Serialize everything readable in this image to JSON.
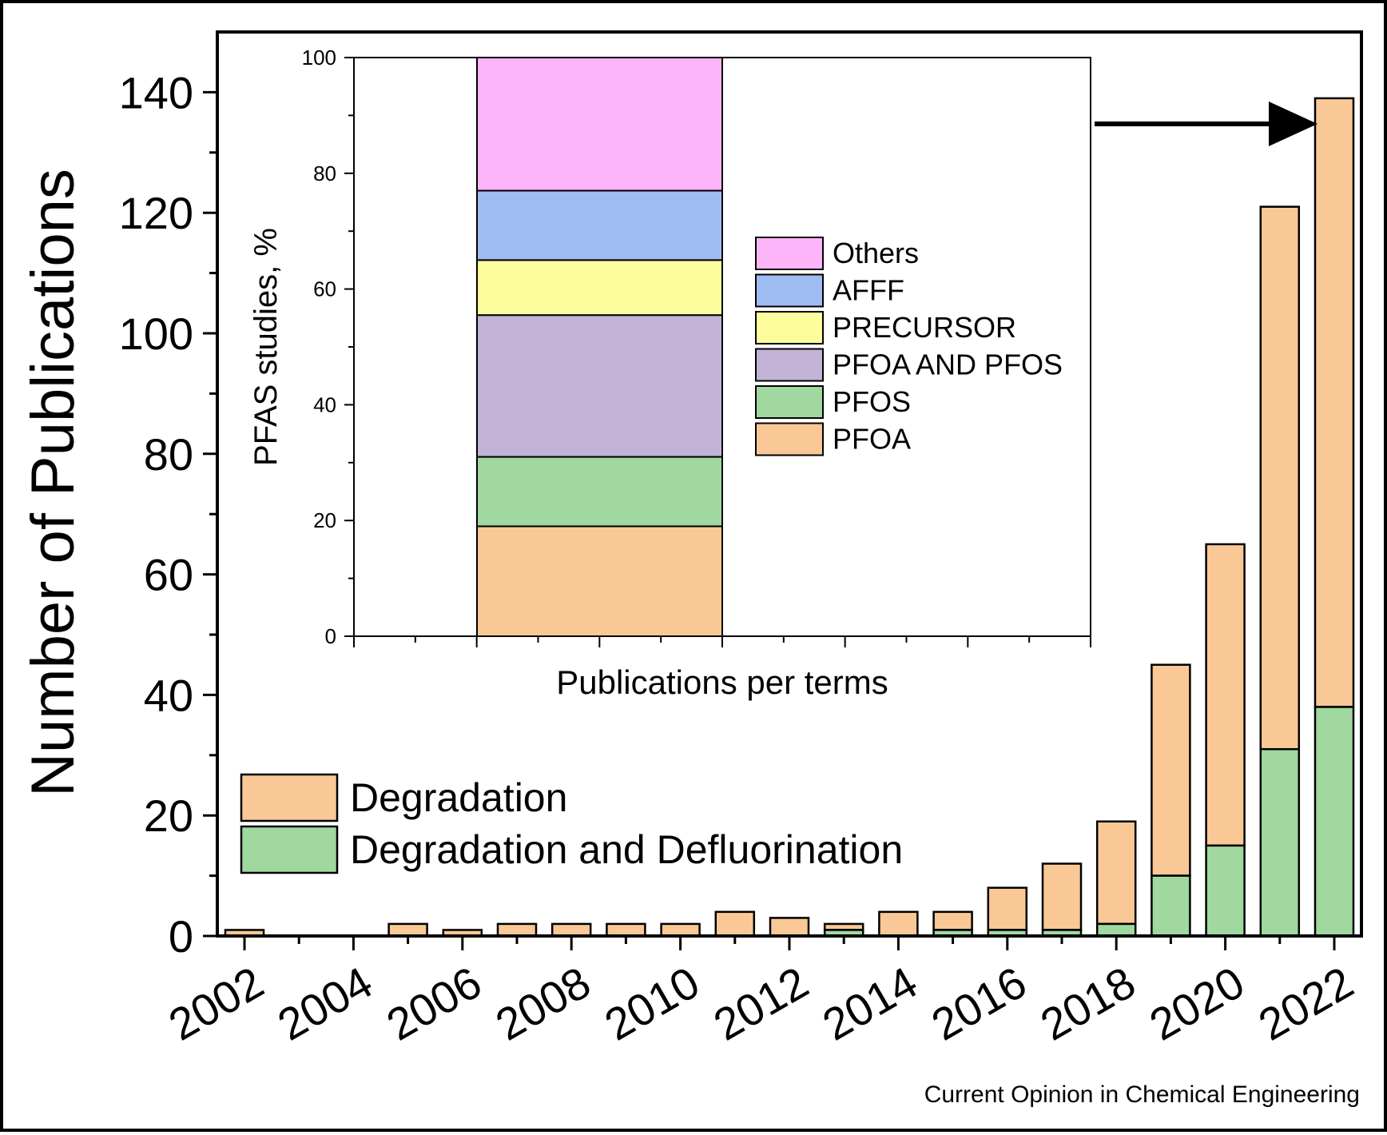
{
  "chart_data": [
    {
      "type": "bar",
      "stacked": true,
      "ylabel": "Number of Publications",
      "xlabel": "",
      "ylim": [
        0,
        150
      ],
      "y_ticks": [
        "0",
        "20",
        "40",
        "60",
        "80",
        "100",
        "120",
        "140"
      ],
      "x_tick_labels": [
        "2002",
        "2004",
        "2006",
        "2008",
        "2010",
        "2012",
        "2014",
        "2016",
        "2018",
        "2020",
        "2022"
      ],
      "categories": [
        2002,
        2003,
        2004,
        2005,
        2006,
        2007,
        2008,
        2009,
        2010,
        2011,
        2012,
        2013,
        2014,
        2015,
        2016,
        2017,
        2018,
        2019,
        2020,
        2021,
        2022
      ],
      "series": [
        {
          "name": "Degradation and Defluorination",
          "color": "#a0d8a0",
          "values": [
            0,
            0,
            0,
            0,
            0,
            0,
            0,
            0,
            0,
            0,
            0,
            1,
            0,
            1,
            1,
            1,
            2,
            10,
            15,
            31,
            38
          ]
        },
        {
          "name": "Degradation",
          "color": "#f9c896",
          "note_total": "stacked on top; totals below",
          "values": [
            1,
            0,
            0,
            2,
            1,
            2,
            2,
            2,
            2,
            4,
            3,
            1,
            4,
            3,
            7,
            11,
            17,
            35,
            50,
            90,
            101
          ]
        }
      ],
      "totals": [
        1,
        0,
        0,
        2,
        1,
        2,
        2,
        2,
        2,
        4,
        3,
        2,
        4,
        4,
        8,
        12,
        19,
        45,
        65,
        121,
        139
      ],
      "legend": {
        "position": "bottom-left",
        "entries": [
          "Degradation",
          "Degradation and Defluorination"
        ]
      }
    },
    {
      "type": "bar",
      "stacked": true,
      "ylabel": "PFAS studies, %",
      "xlabel": "Publications per terms",
      "ylim": [
        0,
        100
      ],
      "y_ticks": [
        "0",
        "20",
        "40",
        "60",
        "80",
        "100"
      ],
      "series": [
        {
          "name": "PFOA",
          "color": "#f9c896",
          "value": 19
        },
        {
          "name": "PFOS",
          "color": "#a0d8a0",
          "value": 12
        },
        {
          "name": "PFOA AND PFOS",
          "color": "#c2b2d6",
          "value": 24.5
        },
        {
          "name": "PRECURSOR",
          "color": "#fdfd9d",
          "value": 9.5
        },
        {
          "name": "AFFF",
          "color": "#9fbcf2",
          "value": 12
        },
        {
          "name": "Others",
          "color": "#fdb5f9",
          "value": 23
        }
      ],
      "legend": {
        "position": "right",
        "order": [
          "Others",
          "AFFF",
          "PRECURSOR",
          "PFOA AND PFOS",
          "PFOS",
          "PFOA"
        ]
      }
    }
  ],
  "source_credit": "Current Opinion in Chemical Engineering"
}
